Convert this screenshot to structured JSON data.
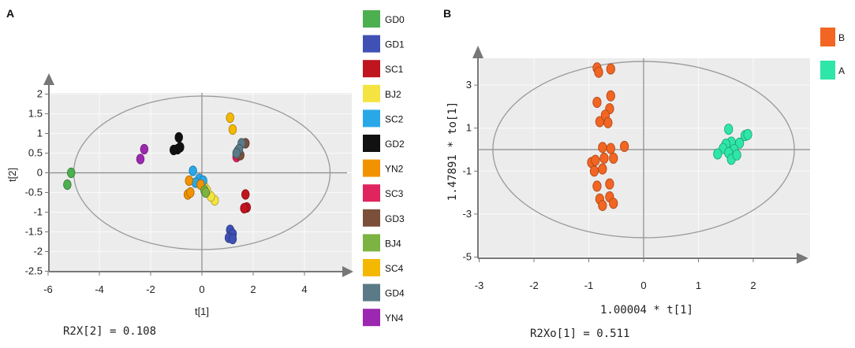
{
  "panels": {
    "a": {
      "label": "A",
      "stat_text": "R2X[2] = 0.108",
      "legend_title": ""
    },
    "b": {
      "label": "B",
      "stat_text": "R2Xo[1] = 0.511"
    }
  },
  "chart_data": [
    {
      "type": "scatter",
      "title": "",
      "xlabel": "t[1]",
      "ylabel": "t[2]",
      "xlim": [
        -6,
        6
      ],
      "ylim": [
        -2.5,
        2.5
      ],
      "xticks": [
        "-6",
        "-4",
        "-2",
        "0",
        "2",
        "4"
      ],
      "yticks": [
        "2",
        "1.5",
        "1",
        "0.5",
        "0",
        "-0.5",
        "-1",
        "-1.5",
        "-2",
        "-2.5"
      ],
      "ellipse": {
        "rx": 5.0,
        "ry": 1.95
      },
      "series": [
        {
          "name": "GD0",
          "color": "#4caf50",
          "points": [
            [
              -5.1,
              0.0
            ],
            [
              -5.25,
              -0.3
            ]
          ]
        },
        {
          "name": "GD1",
          "color": "#3f51b5",
          "points": [
            [
              1.1,
              -1.45
            ],
            [
              1.2,
              -1.55
            ],
            [
              1.05,
              -1.65
            ],
            [
              1.2,
              -1.68
            ]
          ]
        },
        {
          "name": "SC1",
          "color": "#c0141e",
          "points": [
            [
              1.7,
              -0.55
            ],
            [
              1.75,
              -0.88
            ],
            [
              1.65,
              -0.9
            ]
          ]
        },
        {
          "name": "BJ2",
          "color": "#f5e342",
          "points": [
            [
              0.5,
              -0.7
            ],
            [
              0.35,
              -0.6
            ],
            [
              0.1,
              -0.35
            ],
            [
              0.2,
              -0.45
            ]
          ]
        },
        {
          "name": "SC2",
          "color": "#29a8e8",
          "points": [
            [
              -0.35,
              0.05
            ],
            [
              -0.1,
              -0.15
            ],
            [
              0.05,
              -0.2
            ],
            [
              -0.25,
              -0.25
            ]
          ]
        },
        {
          "name": "GD2",
          "color": "#111111",
          "points": [
            [
              -0.9,
              0.9
            ],
            [
              -0.95,
              0.6
            ],
            [
              -1.1,
              0.58
            ],
            [
              -0.85,
              0.65
            ]
          ]
        },
        {
          "name": "YN2",
          "color": "#f39200",
          "points": [
            [
              -0.5,
              -0.2
            ],
            [
              -0.55,
              -0.55
            ],
            [
              -0.45,
              -0.5
            ],
            [
              -0.05,
              -0.3
            ]
          ]
        },
        {
          "name": "SC3",
          "color": "#e0245e",
          "points": [
            [
              1.35,
              0.4
            ],
            [
              1.4,
              0.45
            ]
          ]
        },
        {
          "name": "GD3",
          "color": "#7b4f3a",
          "points": [
            [
              1.7,
              0.75
            ],
            [
              1.5,
              0.45
            ],
            [
              1.4,
              0.55
            ]
          ]
        },
        {
          "name": "BJ4",
          "color": "#7cb342",
          "points": [
            [
              0.1,
              -0.45
            ],
            [
              0.15,
              -0.5
            ]
          ]
        },
        {
          "name": "SC4",
          "color": "#f5b800",
          "points": [
            [
              1.1,
              1.4
            ],
            [
              1.2,
              1.1
            ]
          ]
        },
        {
          "name": "GD4",
          "color": "#5b7a87",
          "points": [
            [
              1.55,
              0.75
            ],
            [
              1.45,
              0.6
            ],
            [
              1.35,
              0.5
            ]
          ]
        },
        {
          "name": "YN4",
          "color": "#9c27b0",
          "points": [
            [
              -2.25,
              0.6
            ],
            [
              -2.4,
              0.35
            ]
          ]
        }
      ]
    },
    {
      "type": "scatter",
      "title": "",
      "xlabel": "1.00004 * t[1]",
      "ylabel": "1.47891 * to[1]",
      "xlim": [
        -3,
        3
      ],
      "ylim": [
        -5,
        5
      ],
      "xticks": [
        "-3",
        "-2",
        "-1",
        "0",
        "1",
        "2"
      ],
      "yticks": [
        "3",
        "1",
        "-1",
        "-3",
        "-5"
      ],
      "ellipse": {
        "rx": 2.75,
        "ry": 4.1
      },
      "series": [
        {
          "name": "B",
          "color": "#f26522",
          "points": [
            [
              -0.85,
              3.8
            ],
            [
              -0.6,
              3.75
            ],
            [
              -0.82,
              3.6
            ],
            [
              -0.85,
              2.2
            ],
            [
              -0.6,
              2.5
            ],
            [
              -0.62,
              1.9
            ],
            [
              -0.8,
              1.3
            ],
            [
              -0.7,
              1.6
            ],
            [
              -0.65,
              1.25
            ],
            [
              -0.75,
              0.1
            ],
            [
              -0.6,
              0.05
            ],
            [
              -0.35,
              0.15
            ],
            [
              -0.95,
              -0.6
            ],
            [
              -0.88,
              -0.5
            ],
            [
              -0.72,
              -0.4
            ],
            [
              -0.55,
              -0.4
            ],
            [
              -0.9,
              -1.0
            ],
            [
              -0.75,
              -0.9
            ],
            [
              -0.85,
              -1.7
            ],
            [
              -0.62,
              -1.6
            ],
            [
              -0.8,
              -2.3
            ],
            [
              -0.62,
              -2.2
            ],
            [
              -0.55,
              -2.5
            ],
            [
              -0.75,
              -2.6
            ]
          ]
        },
        {
          "name": "A",
          "color": "#2ee6a8",
          "points": [
            [
              1.55,
              0.95
            ],
            [
              1.85,
              0.65
            ],
            [
              1.9,
              0.7
            ],
            [
              1.6,
              0.35
            ],
            [
              1.5,
              0.25
            ],
            [
              1.75,
              0.3
            ],
            [
              1.45,
              0.05
            ],
            [
              1.65,
              0.0
            ],
            [
              1.35,
              -0.2
            ],
            [
              1.55,
              -0.15
            ],
            [
              1.6,
              -0.45
            ],
            [
              1.7,
              -0.25
            ]
          ]
        }
      ]
    }
  ]
}
